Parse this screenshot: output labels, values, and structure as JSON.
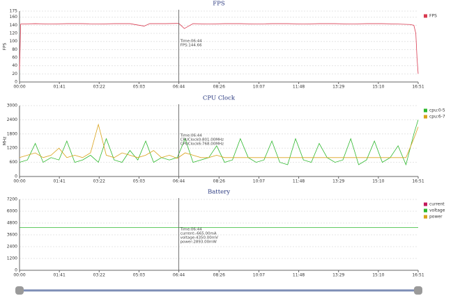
{
  "chart_data": [
    {
      "type": "line",
      "title": "FPS",
      "ylabel": "FPS",
      "grid": true,
      "legend": "right",
      "xlim": [
        0,
        1011
      ],
      "xticks": [
        {
          "value": 0,
          "label": "00:00"
        },
        {
          "value": 101,
          "label": "01:41"
        },
        {
          "value": 202,
          "label": "03:22"
        },
        {
          "value": 303,
          "label": "05:03"
        },
        {
          "value": 404,
          "label": "06:44"
        },
        {
          "value": 506,
          "label": "08:26"
        },
        {
          "value": 607,
          "label": "10:07"
        },
        {
          "value": 708,
          "label": "11:48"
        },
        {
          "value": 809,
          "label": "13:29"
        },
        {
          "value": 910,
          "label": "15:10"
        },
        {
          "value": 1011,
          "label": "16:51"
        }
      ],
      "ylim": [
        0,
        175
      ],
      "yticks": [
        0,
        20,
        40,
        60,
        80,
        100,
        120,
        140,
        160,
        175
      ],
      "series": [
        {
          "name": "FPS",
          "color": "#d9394f",
          "x": [
            0,
            3,
            40,
            80,
            120,
            160,
            200,
            240,
            280,
            316,
            330,
            370,
            404,
            418,
            440,
            480,
            520,
            560,
            600,
            640,
            680,
            720,
            760,
            800,
            840,
            880,
            920,
            960,
            990,
            1000,
            1005,
            1008,
            1011
          ],
          "values": [
            30,
            143,
            144,
            143,
            144,
            144,
            143,
            144,
            144,
            138,
            144,
            144,
            144.66,
            132,
            144,
            143,
            144,
            144,
            143,
            144,
            144,
            143,
            144,
            144,
            143,
            144,
            144,
            143,
            142,
            140,
            120,
            60,
            20
          ]
        }
      ],
      "tooltip": {
        "x": 404,
        "lines": [
          "Time:06:44",
          "FPS:144.66"
        ]
      }
    },
    {
      "type": "line",
      "title": "CPU Clock",
      "ylabel": "MHz",
      "grid": true,
      "legend": "right",
      "xlim": [
        0,
        1011
      ],
      "xticks": [
        {
          "value": 0,
          "label": "00:00"
        },
        {
          "value": 101,
          "label": "01:41"
        },
        {
          "value": 202,
          "label": "03:22"
        },
        {
          "value": 303,
          "label": "05:03"
        },
        {
          "value": 404,
          "label": "06:44"
        },
        {
          "value": 506,
          "label": "08:26"
        },
        {
          "value": 607,
          "label": "10:07"
        },
        {
          "value": 708,
          "label": "11:48"
        },
        {
          "value": 809,
          "label": "13:29"
        },
        {
          "value": 910,
          "label": "15:10"
        },
        {
          "value": 1011,
          "label": "16:51"
        }
      ],
      "ylim": [
        0,
        3000
      ],
      "yticks": [
        0,
        600,
        1200,
        1800,
        2400,
        3000
      ],
      "series": [
        {
          "name": "cpu:0-5",
          "color": "#2eb82e",
          "x": [
            0,
            20,
            40,
            60,
            80,
            100,
            120,
            140,
            160,
            180,
            200,
            220,
            240,
            260,
            280,
            300,
            320,
            340,
            360,
            380,
            400,
            420,
            440,
            460,
            480,
            500,
            520,
            540,
            560,
            580,
            600,
            620,
            640,
            660,
            680,
            700,
            720,
            740,
            760,
            780,
            800,
            820,
            840,
            860,
            880,
            900,
            920,
            940,
            960,
            980,
            1000,
            1011
          ],
          "values": [
            600,
            700,
            1400,
            600,
            800,
            700,
            1500,
            600,
            700,
            900,
            600,
            1600,
            700,
            600,
            1100,
            700,
            1500,
            600,
            800,
            700,
            800,
            1600,
            600,
            700,
            800,
            1300,
            600,
            700,
            1600,
            800,
            600,
            700,
            1500,
            600,
            500,
            1600,
            700,
            600,
            1400,
            800,
            600,
            700,
            1600,
            500,
            700,
            1500,
            600,
            800,
            1300,
            500,
            1800,
            2400
          ]
        },
        {
          "name": "cpu:6-7",
          "color": "#d9a21a",
          "x": [
            0,
            20,
            40,
            60,
            80,
            100,
            120,
            140,
            160,
            180,
            200,
            220,
            240,
            260,
            280,
            300,
            320,
            340,
            360,
            380,
            400,
            420,
            440,
            460,
            480,
            500,
            520,
            540,
            560,
            580,
            600,
            620,
            640,
            660,
            680,
            700,
            720,
            740,
            760,
            780,
            800,
            820,
            840,
            860,
            880,
            900,
            920,
            940,
            960,
            980,
            1000,
            1011
          ],
          "values": [
            800,
            900,
            1000,
            800,
            900,
            1200,
            800,
            900,
            800,
            1000,
            2200,
            900,
            800,
            1000,
            900,
            800,
            900,
            1100,
            800,
            900,
            768,
            1000,
            900,
            800,
            800,
            900,
            800,
            800,
            800,
            800,
            800,
            800,
            800,
            800,
            800,
            800,
            800,
            800,
            800,
            800,
            800,
            800,
            800,
            800,
            800,
            800,
            800,
            800,
            800,
            800,
            1600,
            2100
          ]
        }
      ],
      "tooltip": {
        "x": 404,
        "lines": [
          "Time:06:44",
          "CPUClock0:801.00MHz",
          "CPUClock6:768.00MHz"
        ]
      }
    },
    {
      "type": "line",
      "title": "Battery",
      "grid": true,
      "legend": "right",
      "xlim": [
        0,
        1011
      ],
      "xticks": [
        {
          "value": 0,
          "label": "00:00"
        },
        {
          "value": 101,
          "label": "01:41"
        },
        {
          "value": 202,
          "label": "03:22"
        },
        {
          "value": 303,
          "label": "05:03"
        },
        {
          "value": 404,
          "label": "06:44"
        },
        {
          "value": 506,
          "label": "08:26"
        },
        {
          "value": 607,
          "label": "10:07"
        },
        {
          "value": 708,
          "label": "11:48"
        },
        {
          "value": 809,
          "label": "13:29"
        },
        {
          "value": 910,
          "label": "15:10"
        },
        {
          "value": 1011,
          "label": "16:51"
        }
      ],
      "ylim": [
        0,
        7200
      ],
      "yticks": [
        0,
        1200,
        2400,
        3600,
        4800,
        6000,
        7200
      ],
      "series": [
        {
          "name": "current",
          "color": "#c2185b",
          "x": [
            0,
            1011
          ],
          "values": [
            null,
            null
          ]
        },
        {
          "name": "voltage",
          "color": "#2eb82e",
          "x": [
            0,
            1011
          ],
          "values": [
            4350,
            4350
          ]
        },
        {
          "name": "power",
          "color": "#d9a21a",
          "x": [
            0,
            1011
          ],
          "values": [
            null,
            null
          ]
        }
      ],
      "tooltip": {
        "x": 404,
        "lines": [
          "Time:06:44",
          "current:-665.00mA",
          "voltage:4350.00mV",
          "power:2893.00mW"
        ]
      }
    }
  ]
}
